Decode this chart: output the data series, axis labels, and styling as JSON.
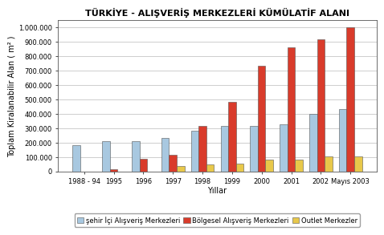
{
  "title": "TÜRKİYE - ALIŞVERİŞ MERKEZLERİ KÜMÜLATİF ALANI",
  "xlabel": "Yıllar",
  "ylabel": "Toplam Kiralanabilir Alan ( m² )",
  "categories": [
    "1988 - 94",
    "1995",
    "1996",
    "1997",
    "1998",
    "1999",
    "2000",
    "2001",
    "2002",
    "Mayıs 2003"
  ],
  "series": {
    "şehir İçi Alışveriş Merkezleri": [
      185000,
      208000,
      210000,
      232000,
      282000,
      315000,
      315000,
      330000,
      398000,
      435000
    ],
    "Bölgesel Alışveriş Merkezleri": [
      0,
      15000,
      85000,
      115000,
      315000,
      485000,
      735000,
      860000,
      920000,
      1000000
    ],
    "Outlet Merkezler": [
      0,
      0,
      0,
      35000,
      48000,
      52000,
      82000,
      82000,
      105000,
      105000
    ]
  },
  "colors": {
    "şehir İçi Alışveriş Merkezleri": "#a8c8e0",
    "Bölgesel Alışveriş Merkezleri": "#d93b2b",
    "Outlet Merkezler": "#e8c84a"
  },
  "ylim": [
    0,
    1050000
  ],
  "yticks": [
    0,
    100000,
    200000,
    300000,
    400000,
    500000,
    600000,
    700000,
    800000,
    900000,
    1000000
  ],
  "ytick_labels": [
    "0",
    "100.000",
    "200.000",
    "300.000",
    "400.000",
    "500.000",
    "600.000",
    "700.000",
    "800.000",
    "900.000",
    "1.000.000"
  ],
  "title_fontsize": 8,
  "axis_label_fontsize": 7,
  "tick_fontsize": 6,
  "legend_fontsize": 6,
  "bar_width": 0.26,
  "edge_color": "#555555",
  "background_color": "#ffffff",
  "grid_color": "#bbbbbb"
}
